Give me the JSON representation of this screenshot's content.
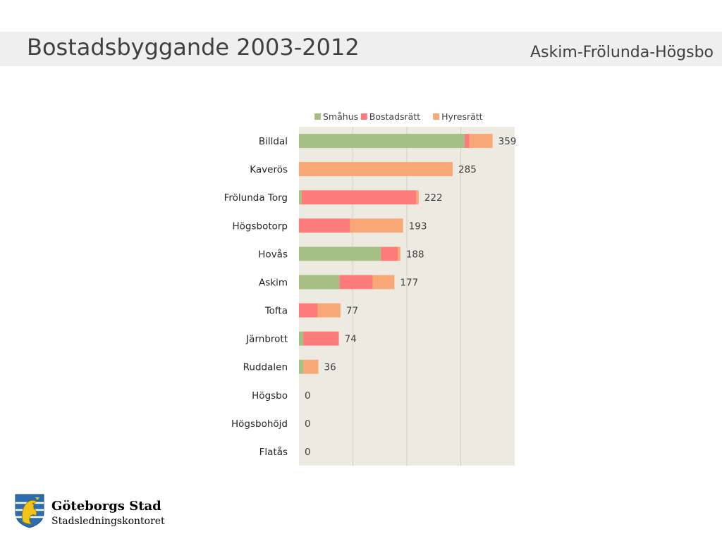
{
  "header": {
    "title": "Bostadsbyggande 2003-2012",
    "subtitle": "Askim-Frölunda-Högsbo"
  },
  "footer": {
    "org_name": "Göteborgs Stad",
    "org_dept": "Stadsledningskontoret"
  },
  "colors": {
    "smahus": "#a5bf85",
    "bostadsratt": "#fd7b7b",
    "hyresratt": "#f8a877",
    "plot_bg": "#edeae1"
  },
  "chart_data": {
    "type": "bar",
    "orientation": "horizontal",
    "stacked": true,
    "categories": [
      "Billdal",
      "Kaverös",
      "Frölunda Torg",
      "Högsbotorp",
      "Hovås",
      "Askim",
      "Tofta",
      "Järnbrott",
      "Ruddalen",
      "Högsbo",
      "Högsbohöjd",
      "Flatås"
    ],
    "series": [
      {
        "name": "Småhus",
        "color": "#a5bf85",
        "values": [
          307,
          0,
          5,
          0,
          152,
          75,
          0,
          8,
          8,
          0,
          0,
          0
        ]
      },
      {
        "name": "Bostadsrätt",
        "color": "#fd7b7b",
        "values": [
          9,
          0,
          212,
          95,
          31,
          62,
          35,
          66,
          0,
          0,
          0,
          0
        ]
      },
      {
        "name": "Hyresrätt",
        "color": "#f8a877",
        "values": [
          43,
          285,
          5,
          98,
          5,
          40,
          42,
          0,
          28,
          0,
          0,
          0
        ]
      }
    ],
    "totals": [
      359,
      285,
      222,
      193,
      188,
      177,
      77,
      74,
      36,
      0,
      0,
      0
    ],
    "xlim": [
      0,
      400
    ],
    "legend_position": "top",
    "grid": true
  }
}
